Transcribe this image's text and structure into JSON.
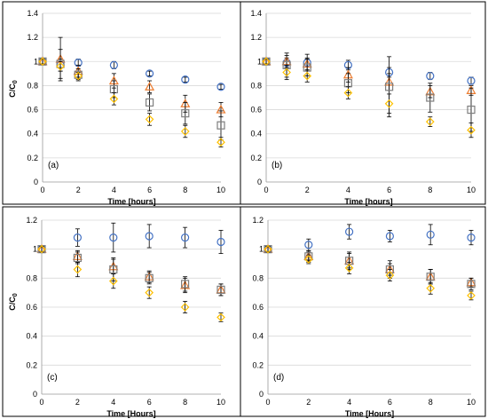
{
  "colors": {
    "circle": "#4472C4",
    "triangle": "#ED7D31",
    "square": "#7F7F7F",
    "diamond": "#FFC000",
    "grid": "#d9d9d9",
    "errorbar": "#000000",
    "frame": "#000000"
  },
  "chart_data": [
    {
      "panel_label": "(a)",
      "type": "scatter",
      "xlabel": "Time [hours]",
      "ylabel": "C/C",
      "ylabel_sub": "0",
      "xlim": [
        0,
        10
      ],
      "ylim": [
        0,
        1.4
      ],
      "xticks": [
        0,
        2,
        4,
        6,
        8,
        10
      ],
      "yticks": [
        0,
        0.2,
        0.4,
        0.6,
        0.8,
        1,
        1.2,
        1.4
      ],
      "ytick_labels": [
        "0",
        "0.2",
        "0.4",
        "0.6",
        "0.8",
        "1",
        "1.2",
        "1.4"
      ],
      "grid": true,
      "x": [
        0,
        1,
        2,
        4,
        6,
        8,
        10
      ],
      "series": [
        {
          "marker": "circle",
          "values": [
            1.0,
            0.97,
            0.99,
            0.97,
            0.9,
            0.85,
            0.79
          ],
          "err": [
            0.02,
            0.05,
            0.03,
            0.03,
            0.02,
            0.02,
            0.02
          ]
        },
        {
          "marker": "triangle",
          "values": [
            1.0,
            1.02,
            0.92,
            0.84,
            0.79,
            0.65,
            0.6
          ],
          "err": [
            0.02,
            0.18,
            0.05,
            0.06,
            0.05,
            0.07,
            0.06
          ]
        },
        {
          "marker": "square",
          "values": [
            1.0,
            0.98,
            0.89,
            0.77,
            0.66,
            0.57,
            0.47
          ],
          "err": [
            0.02,
            0.12,
            0.05,
            0.07,
            0.07,
            0.09,
            0.12
          ]
        },
        {
          "marker": "diamond",
          "values": [
            1.0,
            0.96,
            0.88,
            0.69,
            0.52,
            0.42,
            0.33
          ],
          "err": [
            0.02,
            0.04,
            0.03,
            0.05,
            0.05,
            0.05,
            0.04
          ]
        }
      ]
    },
    {
      "panel_label": "(b)",
      "type": "scatter",
      "xlabel": "Time [hours]",
      "ylabel": "",
      "ylabel_sub": "",
      "xlim": [
        0,
        10
      ],
      "ylim": [
        0,
        1.4
      ],
      "xticks": [
        0,
        2,
        4,
        6,
        8,
        10
      ],
      "yticks": [
        0,
        0.2,
        0.4,
        0.6,
        0.8,
        1,
        1.2,
        1.4
      ],
      "ytick_labels": [
        "0",
        "0.2",
        "0.4",
        "0.6",
        "0.8",
        "1",
        "1.2",
        "1.4"
      ],
      "grid": true,
      "x": [
        0,
        1,
        2,
        4,
        6,
        8,
        10
      ],
      "series": [
        {
          "marker": "circle",
          "values": [
            1.0,
            0.99,
            0.99,
            0.97,
            0.91,
            0.88,
            0.84
          ],
          "err": [
            0.02,
            0.04,
            0.07,
            0.04,
            0.04,
            0.03,
            0.03
          ]
        },
        {
          "marker": "triangle",
          "values": [
            1.0,
            1.0,
            0.98,
            0.89,
            0.83,
            0.75,
            0.76
          ],
          "err": [
            0.02,
            0.05,
            0.05,
            0.06,
            0.07,
            0.05,
            0.04
          ]
        },
        {
          "marker": "square",
          "values": [
            1.0,
            0.97,
            0.95,
            0.82,
            0.79,
            0.7,
            0.6
          ],
          "err": [
            0.02,
            0.1,
            0.07,
            0.08,
            0.25,
            0.12,
            0.18
          ]
        },
        {
          "marker": "diamond",
          "values": [
            1.0,
            0.91,
            0.88,
            0.74,
            0.65,
            0.5,
            0.43
          ],
          "err": [
            0.02,
            0.06,
            0.05,
            0.05,
            0.08,
            0.04,
            0.06
          ]
        }
      ]
    },
    {
      "panel_label": "(c)",
      "type": "scatter",
      "xlabel": "Time [Hours]",
      "ylabel": "C/C",
      "ylabel_sub": "0",
      "xlim": [
        0,
        10
      ],
      "ylim": [
        0,
        1.2
      ],
      "xticks": [
        0,
        2,
        4,
        6,
        8,
        10
      ],
      "yticks": [
        0,
        0.2,
        0.4,
        0.6,
        0.8,
        1,
        1.2
      ],
      "ytick_labels": [
        "0",
        "0.2",
        "0.4",
        "0.6",
        "0.8",
        "1",
        "1.2"
      ],
      "grid": true,
      "x": [
        0,
        2,
        4,
        6,
        8,
        10
      ],
      "series": [
        {
          "marker": "circle",
          "values": [
            1.0,
            1.08,
            1.08,
            1.09,
            1.08,
            1.05
          ],
          "err": [
            0.02,
            0.06,
            0.1,
            0.08,
            0.07,
            0.08
          ]
        },
        {
          "marker": "triangle",
          "values": [
            1.0,
            0.95,
            0.88,
            0.81,
            0.75,
            0.72
          ],
          "err": [
            0.02,
            0.04,
            0.05,
            0.04,
            0.05,
            0.04
          ]
        },
        {
          "marker": "square",
          "values": [
            1.0,
            0.94,
            0.86,
            0.8,
            0.76,
            0.72
          ],
          "err": [
            0.02,
            0.04,
            0.08,
            0.04,
            0.05,
            0.04
          ]
        },
        {
          "marker": "diamond",
          "values": [
            1.0,
            0.86,
            0.78,
            0.7,
            0.6,
            0.53
          ],
          "err": [
            0.02,
            0.05,
            0.05,
            0.04,
            0.04,
            0.03
          ]
        }
      ]
    },
    {
      "panel_label": "(d)",
      "type": "scatter",
      "xlabel": "Time [Hours]",
      "ylabel": "",
      "ylabel_sub": "",
      "xlim": [
        0,
        10
      ],
      "ylim": [
        0,
        1.2
      ],
      "xticks": [
        0,
        2,
        4,
        6,
        8,
        10
      ],
      "yticks": [
        0,
        0.2,
        0.4,
        0.6,
        0.8,
        1,
        1.2
      ],
      "ytick_labels": [
        "0",
        "0.2",
        "0.4",
        "0.6",
        "0.8",
        "1",
        "1.2"
      ],
      "grid": true,
      "x": [
        0,
        2,
        4,
        6,
        8,
        10
      ],
      "series": [
        {
          "marker": "circle",
          "values": [
            1.0,
            1.03,
            1.12,
            1.09,
            1.1,
            1.08
          ],
          "err": [
            0.02,
            0.04,
            0.05,
            0.04,
            0.07,
            0.05
          ]
        },
        {
          "marker": "triangle",
          "values": [
            1.0,
            0.95,
            0.92,
            0.86,
            0.81,
            0.77
          ],
          "err": [
            0.02,
            0.03,
            0.05,
            0.04,
            0.05,
            0.03
          ]
        },
        {
          "marker": "square",
          "values": [
            1.0,
            0.95,
            0.92,
            0.86,
            0.81,
            0.76
          ],
          "err": [
            0.02,
            0.04,
            0.06,
            0.06,
            0.05,
            0.04
          ]
        },
        {
          "marker": "diamond",
          "values": [
            1.0,
            0.93,
            0.87,
            0.82,
            0.73,
            0.68
          ],
          "err": [
            0.02,
            0.03,
            0.04,
            0.04,
            0.04,
            0.03
          ]
        }
      ]
    }
  ]
}
